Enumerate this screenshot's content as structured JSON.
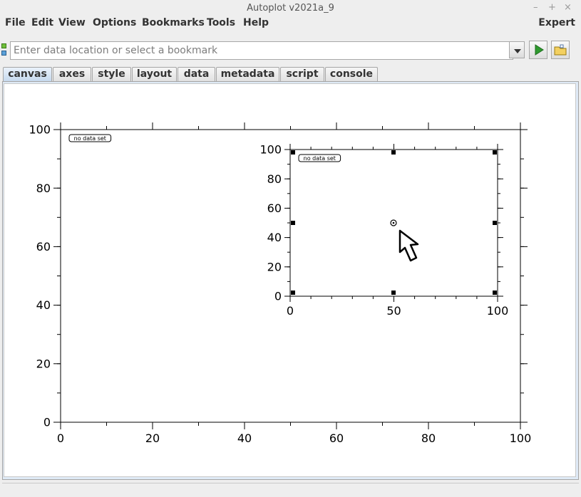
{
  "window": {
    "title": "Autoplot v2021a_9",
    "minimize": "–",
    "maximize": "+",
    "close": "×"
  },
  "menubar": {
    "items": [
      "File",
      "Edit",
      "View",
      "Options",
      "Bookmarks",
      "Tools",
      "Help"
    ],
    "expert": "Expert"
  },
  "address": {
    "value": "",
    "placeholder": "Enter data location or select a bookmark"
  },
  "tabs": [
    "canvas",
    "axes",
    "style",
    "layout",
    "data",
    "metadata",
    "script",
    "console"
  ],
  "active_tab": "canvas",
  "plots": [
    {
      "label": "no data set",
      "x_ticks": [
        "0",
        "20",
        "40",
        "60",
        "80",
        "100"
      ],
      "y_ticks": [
        "0",
        "20",
        "40",
        "60",
        "80",
        "100"
      ]
    },
    {
      "label": "no data set",
      "x_ticks": [
        "0",
        "50",
        "100"
      ],
      "y_ticks": [
        "0",
        "20",
        "40",
        "60",
        "80",
        "100"
      ]
    }
  ]
}
